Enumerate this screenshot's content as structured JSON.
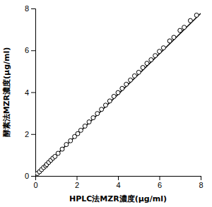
{
  "chart_data": {
    "type": "scatter",
    "xlabel": "HPLC法MZR濃度(μg/ml)",
    "ylabel": "酵素法MZR濃度(μg/ml)",
    "xlim": [
      0,
      8
    ],
    "ylim": [
      0,
      8
    ],
    "xticks": [
      0,
      2,
      4,
      6,
      8
    ],
    "yticks": [
      0,
      2,
      4,
      6,
      8
    ],
    "grid": false,
    "series": [
      {
        "type": "line",
        "color": "#000000",
        "line_style": "solid",
        "x": [
          0,
          8
        ],
        "values": [
          0.02,
          7.764
        ]
      },
      {
        "type": "scatter",
        "color": "#000000",
        "marker": "hollow-circle",
        "x": [
          0.1,
          0.2,
          0.3,
          0.4,
          0.5,
          0.55,
          0.65,
          0.75,
          0.85,
          0.95,
          1.1,
          1.3,
          1.5,
          1.7,
          1.9,
          2.05,
          2.2,
          2.4,
          2.6,
          2.8,
          3.0,
          3.2,
          3.4,
          3.6,
          3.8,
          4.0,
          4.2,
          4.4,
          4.6,
          4.8,
          5.0,
          5.2,
          5.4,
          5.6,
          5.8,
          6.0,
          6.2,
          6.5,
          6.7,
          7.0,
          7.2,
          7.5,
          7.8
        ],
        "values": [
          0.12,
          0.2,
          0.3,
          0.4,
          0.48,
          0.55,
          0.65,
          0.75,
          0.85,
          0.93,
          1.08,
          1.28,
          1.5,
          1.68,
          1.88,
          2.02,
          2.18,
          2.38,
          2.58,
          2.78,
          2.98,
          3.18,
          3.38,
          3.58,
          3.8,
          3.98,
          4.18,
          4.38,
          4.58,
          4.78,
          4.95,
          5.18,
          5.38,
          5.55,
          5.75,
          5.95,
          6.12,
          6.45,
          6.62,
          6.95,
          7.1,
          7.42,
          7.68
        ]
      }
    ]
  }
}
